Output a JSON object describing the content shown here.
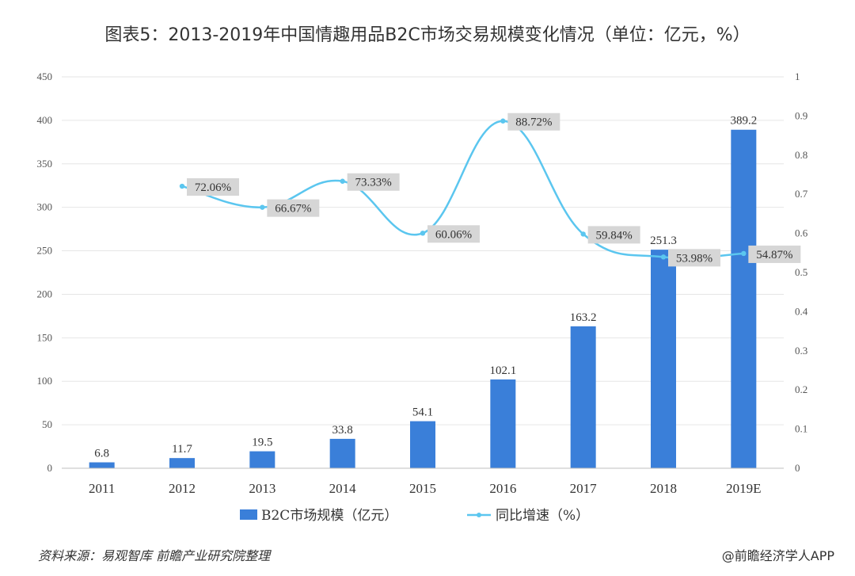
{
  "chart_data": {
    "type": "bar",
    "title": "图表5：2013-2019年中国情趣用品B2C市场交易规模变化情况（单位：亿元，%）",
    "categories": [
      "2011",
      "2012",
      "2013",
      "2014",
      "2015",
      "2016",
      "2017",
      "2018",
      "2019E"
    ],
    "series": [
      {
        "name": "B2C市场规模（亿元）",
        "type": "bar",
        "axis": "left",
        "values": [
          6.8,
          11.7,
          19.5,
          33.8,
          54.1,
          102.1,
          163.2,
          251.3,
          389.2
        ],
        "labels": [
          "6.8",
          "11.7",
          "19.5",
          "33.8",
          "54.1",
          "102.1",
          "163.2",
          "251.3",
          "389.2"
        ]
      },
      {
        "name": "同比增速（%）",
        "type": "line",
        "axis": "right",
        "values": [
          null,
          0.7206,
          0.6667,
          0.7333,
          0.6006,
          0.8872,
          0.5984,
          0.5398,
          0.5487
        ],
        "labels": [
          "",
          "72.06%",
          "66.67%",
          "73.33%",
          "60.06%",
          "88.72%",
          "59.84%",
          "53.98%",
          "54.87%"
        ]
      }
    ],
    "y_left": {
      "range": [
        0,
        450
      ],
      "ticks": [
        "0",
        "50",
        "100",
        "150",
        "200",
        "250",
        "300",
        "350",
        "400",
        "450"
      ]
    },
    "y_right": {
      "range": [
        0,
        1
      ],
      "ticks": [
        "0",
        "0.1",
        "0.2",
        "0.3",
        "0.4",
        "0.5",
        "0.6",
        "0.7",
        "0.8",
        "0.9",
        "1"
      ]
    },
    "grid": true,
    "legend": "bottom",
    "colors": {
      "bar": "#3a7fd9",
      "line": "#5bc6ef",
      "grid": "#e6e6e6",
      "label_box": "#d6d6d6"
    }
  },
  "source_note": "资料来源：易观智库 前瞻产业研究院整理",
  "credit": "@前瞻经济学人APP"
}
